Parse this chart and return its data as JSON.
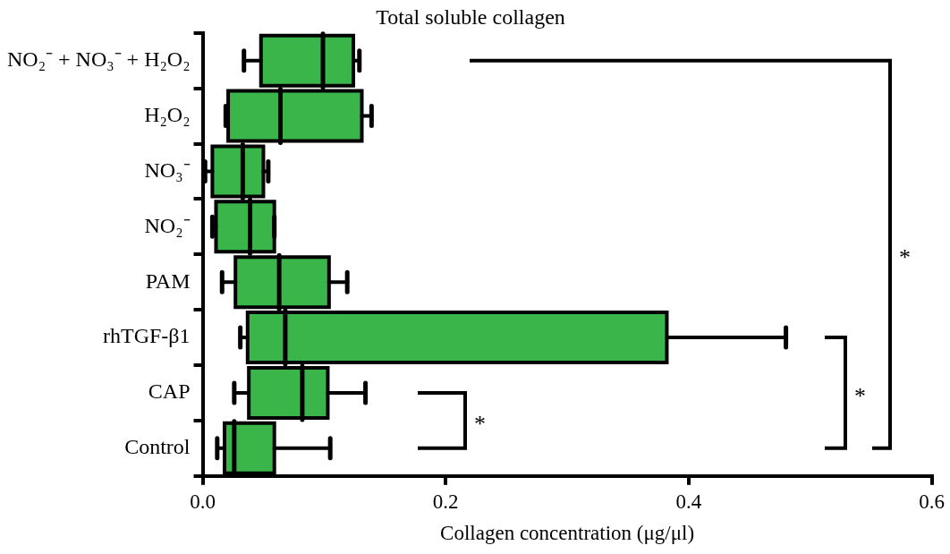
{
  "chart_data": {
    "type": "box",
    "orientation": "horizontal",
    "title": "Total soluble collagen",
    "xlabel": "Collagen concentration (μg/μl)",
    "categories": [
      "NO₂⁻ + NO₃⁻ + H₂O₂",
      "H₂O₂",
      "NO₃⁻",
      "NO₂⁻",
      "PAM",
      "rhTGF-β1",
      "CAP",
      "Control"
    ],
    "color": "#3ab54a",
    "boxes": [
      {
        "low": 0.034,
        "q1": 0.048,
        "median": 0.099,
        "q3": 0.124,
        "high": 0.129
      },
      {
        "low": 0.019,
        "q1": 0.021,
        "median": 0.064,
        "q3": 0.131,
        "high": 0.139
      },
      {
        "low": 0.002,
        "q1": 0.008,
        "median": 0.033,
        "q3": 0.05,
        "high": 0.054
      },
      {
        "low": 0.008,
        "q1": 0.011,
        "median": 0.039,
        "q3": 0.059,
        "high": 0.059
      },
      {
        "low": 0.016,
        "q1": 0.027,
        "median": 0.063,
        "q3": 0.104,
        "high": 0.119
      },
      {
        "low": 0.031,
        "q1": 0.037,
        "median": 0.068,
        "q3": 0.382,
        "high": 0.48
      },
      {
        "low": 0.026,
        "q1": 0.038,
        "median": 0.082,
        "q3": 0.103,
        "high": 0.134
      },
      {
        "low": 0.012,
        "q1": 0.018,
        "median": 0.026,
        "q3": 0.059,
        "high": 0.105
      }
    ],
    "xlim": [
      0,
      0.6
    ],
    "xticks": [
      {
        "value": 0,
        "label": "0.0"
      },
      {
        "value": 0.2,
        "label": "0.2"
      },
      {
        "value": 0.4,
        "label": "0.4"
      },
      {
        "value": 0.6,
        "label": "0.6"
      }
    ],
    "grid": false,
    "legend": false,
    "annotations": [
      "*",
      "*",
      "*"
    ]
  }
}
